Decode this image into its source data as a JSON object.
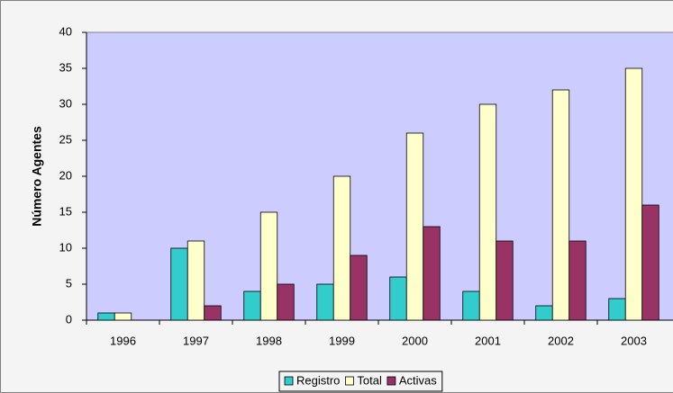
{
  "chart_data": {
    "type": "bar",
    "ylabel": "Número Agentes",
    "categories": [
      "1996",
      "1997",
      "1998",
      "1999",
      "2000",
      "2001",
      "2002",
      "2003"
    ],
    "series": [
      {
        "name": "Registro",
        "color": "#33cccc",
        "values": [
          1,
          10,
          4,
          5,
          6,
          4,
          2,
          3
        ]
      },
      {
        "name": "Total",
        "color": "#ffffcc",
        "values": [
          1,
          11,
          15,
          20,
          26,
          30,
          32,
          35
        ]
      },
      {
        "name": "Activas",
        "color": "#993366",
        "values": [
          0,
          2,
          5,
          9,
          13,
          11,
          11,
          16
        ]
      }
    ],
    "ylim": [
      0,
      40
    ],
    "yticks": [
      0,
      5,
      10,
      15,
      20,
      25,
      30,
      35,
      40
    ],
    "grid": false,
    "legend": "bottom",
    "plot_background": "#ccccff"
  }
}
